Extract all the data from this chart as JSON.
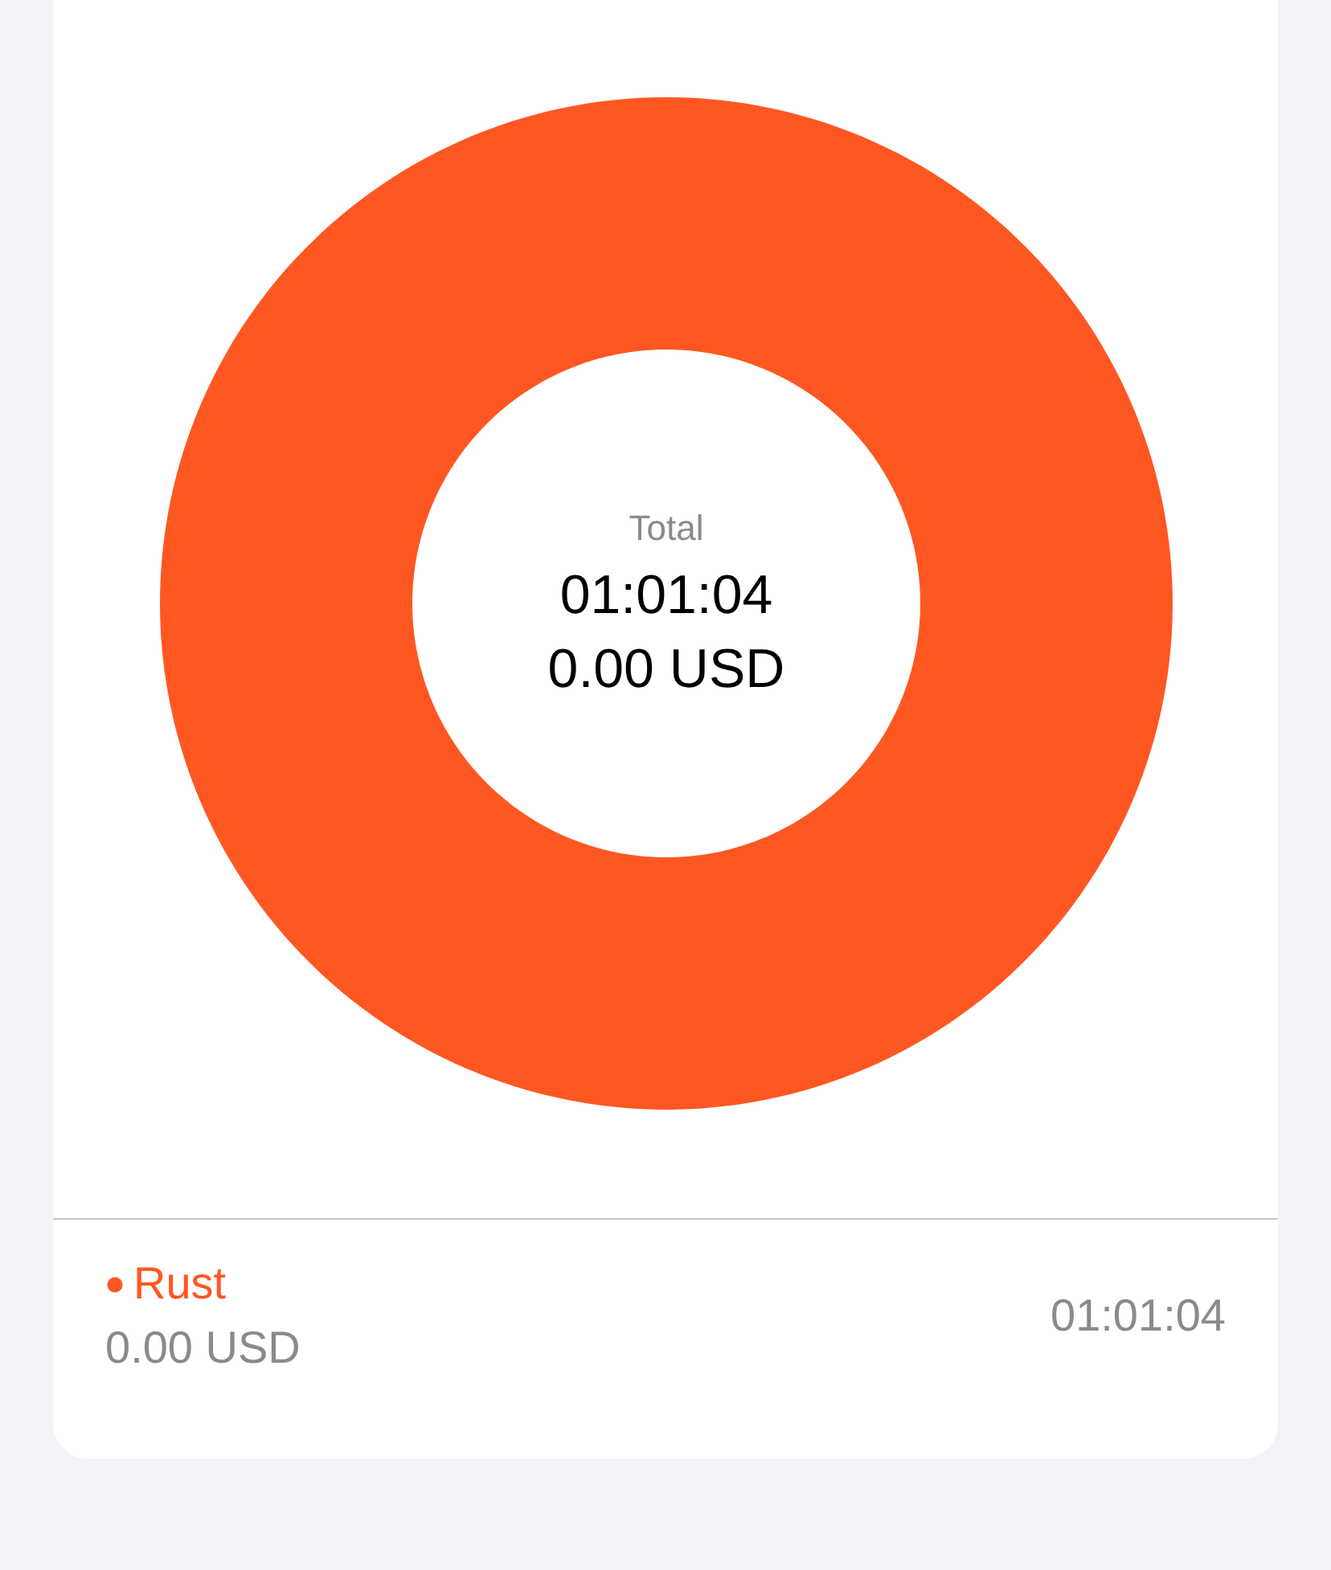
{
  "chart_data": {
    "type": "donut",
    "categories": [
      "Rust"
    ],
    "values": [
      100
    ],
    "colors": [
      "#ff5722"
    ],
    "annotations": [
      "Total",
      "01:01:04",
      "0.00 USD",
      "0.00 USD",
      "01:01:04"
    ],
    "legend": "bottom"
  }
}
